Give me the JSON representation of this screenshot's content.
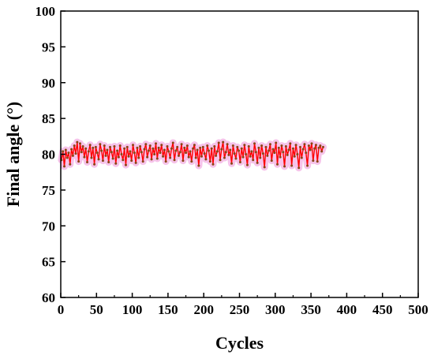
{
  "chart_data": {
    "type": "line",
    "title": "",
    "xlabel": "Cycles",
    "ylabel": "Final angle (°)",
    "xlim": [
      0,
      500
    ],
    "ylim": [
      60,
      100
    ],
    "xticks": [
      0,
      50,
      100,
      150,
      200,
      250,
      300,
      350,
      400,
      450,
      500
    ],
    "yticks": [
      60,
      65,
      70,
      75,
      80,
      85,
      90,
      95,
      100
    ],
    "grid": false,
    "legend": "none",
    "series": [
      {
        "color": "#ff0000",
        "marker_color": "#8b4513",
        "band_color": "#f5b8e6",
        "x_start": 1,
        "x_step": 2,
        "values": [
          79.2,
          80.4,
          78.3,
          80.6,
          79.5,
          80.2,
          78.6,
          80.7,
          79.8,
          81.2,
          80.1,
          81.7,
          79.0,
          81.5,
          80.3,
          81.1,
          79.6,
          80.8,
          78.9,
          80.4,
          81.3,
          79.5,
          80.9,
          78.6,
          81.0,
          80.2,
          79.3,
          81.4,
          80.5,
          79.1,
          81.2,
          79.8,
          80.6,
          78.9,
          81.0,
          80.3,
          79.4,
          81.1,
          78.7,
          80.5,
          79.6,
          81.2,
          80.0,
          79.2,
          80.8,
          78.5,
          81.0,
          79.7,
          80.4,
          79.1,
          81.3,
          80.2,
          78.8,
          80.9,
          79.5,
          81.1,
          80.3,
          79.0,
          80.7,
          81.4,
          79.6,
          80.5,
          81.2,
          79.3,
          80.8,
          80.0,
          81.5,
          79.4,
          80.9,
          80.2,
          81.3,
          79.7,
          80.6,
          79.0,
          81.1,
          80.4,
          79.5,
          80.8,
          81.6,
          79.2,
          80.5,
          81.0,
          79.8,
          80.3,
          81.4,
          79.1,
          80.9,
          80.2,
          81.2,
          79.6,
          80.4,
          79.0,
          80.8,
          81.3,
          79.5,
          80.6,
          78.4,
          80.9,
          79.7,
          81.0,
          80.1,
          79.3,
          81.2,
          80.5,
          79.0,
          80.8,
          78.6,
          81.1,
          79.8,
          80.4,
          81.6,
          79.2,
          80.7,
          81.7,
          79.5,
          80.3,
          81.4,
          79.9,
          80.6,
          78.7,
          81.2,
          80.1,
          79.4,
          81.0,
          80.5,
          78.9,
          80.8,
          79.6,
          81.3,
          80.0,
          78.5,
          81.1,
          79.7,
          80.4,
          79.2,
          81.5,
          80.3,
          78.8,
          80.9,
          79.5,
          81.2,
          80.1,
          78.2,
          81.0,
          79.8,
          80.5,
          81.4,
          79.1,
          80.7,
          80.2,
          81.6,
          78.6,
          80.9,
          79.6,
          81.2,
          80.3,
          78.3,
          81.1,
          79.9,
          80.6,
          81.5,
          78.4,
          80.8,
          79.7,
          81.3,
          80.0,
          78.1,
          81.0,
          79.5,
          80.7,
          81.4,
          80.2,
          78.4,
          81.2,
          80.6,
          81.5,
          79.1,
          80.8,
          81.3,
          79.0,
          80.9,
          81.2,
          80.4,
          81.0
        ]
      }
    ]
  }
}
